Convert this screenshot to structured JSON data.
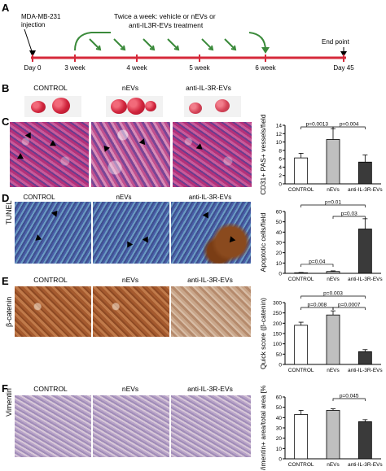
{
  "panel_a": {
    "letter": "A",
    "injection_label_1": "MDA-MB-231",
    "injection_label_2": "injection",
    "treatment_label_1": "Twice a week: vehicle or nEVs or",
    "treatment_label_2": "anti-IL3R-EVs treatment",
    "end_point_label": "End point",
    "timepoints": [
      "Day 0",
      "3 week",
      "4 week",
      "5 week",
      "6 week",
      "Day 45"
    ]
  },
  "panel_b": {
    "letter": "B",
    "groups": [
      "CONTROL",
      "nEVs",
      "anti-IL-3R-EVs"
    ]
  },
  "panel_c": {
    "letter": "C"
  },
  "panel_d": {
    "letter": "D",
    "row_label": "TUNEL",
    "groups": [
      "CONTROL",
      "nEVs",
      "anti-IL-3R-EVs"
    ]
  },
  "panel_e": {
    "letter": "E",
    "row_label": "β-catenin",
    "groups": [
      "CONTROL",
      "nEVs",
      "anti-IL-3R-EVs"
    ]
  },
  "panel_f": {
    "letter": "F",
    "row_label": "Vimentin",
    "groups": [
      "CONTROL",
      "nEVs",
      "anti-IL-3R-EVs"
    ]
  },
  "colors": {
    "control": "#ffffff",
    "nevs": "#bfbfbf",
    "anti": "#3a3a3a",
    "timeline": "#d6293a",
    "arrow_green": "#3a8a3a"
  },
  "chart_data": [
    {
      "type": "bar",
      "categories": [
        "CONTROL",
        "nEVs",
        "anti-IL-3R-EVs"
      ],
      "values": [
        6.2,
        10.6,
        5.2
      ],
      "errors": [
        1.1,
        2.6,
        1.7
      ],
      "ylabel": "CD31+ PAS+ vessels/field",
      "ylim": [
        0,
        14
      ],
      "yticks": [
        0,
        2,
        4,
        6,
        8,
        10,
        12,
        14
      ],
      "annotations": [
        {
          "pair": [
            "CONTROL",
            "nEVs"
          ],
          "text": "p=0.0013"
        },
        {
          "pair": [
            "nEVs",
            "anti-IL-3R-EVs"
          ],
          "text": "p=0.004"
        }
      ]
    },
    {
      "type": "bar",
      "categories": [
        "CONTROL",
        "nEVs",
        "anti-IL-3R-EVs"
      ],
      "values": [
        0.5,
        1.8,
        43
      ],
      "errors": [
        0.3,
        0.6,
        10
      ],
      "ylabel": "Apoptotic cells/field",
      "ylim": [
        0,
        60
      ],
      "yticks": [
        0,
        10,
        20,
        30,
        40,
        50,
        60
      ],
      "annotations": [
        {
          "pair": [
            "CONTROL",
            "nEVs"
          ],
          "text": "p=0.04"
        },
        {
          "pair": [
            "nEVs",
            "anti-IL-3R-EVs"
          ],
          "text": "p=0.03"
        },
        {
          "pair": [
            "CONTROL",
            "anti-IL-3R-EVs"
          ],
          "text": "p=0.01"
        }
      ]
    },
    {
      "type": "bar",
      "categories": [
        "CONTROL",
        "nEVs",
        "anti-IL-3R-EVs"
      ],
      "values": [
        190,
        240,
        62
      ],
      "errors": [
        15,
        20,
        10
      ],
      "ylabel": "Quick score (β-catenin)",
      "ylim": [
        0,
        300
      ],
      "yticks": [
        0,
        50,
        100,
        150,
        200,
        250,
        300
      ],
      "annotations": [
        {
          "pair": [
            "CONTROL",
            "nEVs"
          ],
          "text": "p=0.008"
        },
        {
          "pair": [
            "nEVs",
            "anti-IL-3R-EVs"
          ],
          "text": "p=0.0007"
        },
        {
          "pair": [
            "CONTROL",
            "anti-IL-3R-EVs"
          ],
          "text": "p=0.003"
        }
      ]
    },
    {
      "type": "bar",
      "categories": [
        "CONTROL",
        "nEVs",
        "anti-IL-3R-EVs"
      ],
      "values": [
        43,
        47,
        36
      ],
      "errors": [
        4,
        1.5,
        2
      ],
      "ylabel": "Vimentin+ area/total area [%]",
      "ylim": [
        0,
        60
      ],
      "yticks": [
        0,
        10,
        20,
        30,
        40,
        50,
        60
      ],
      "annotations": [
        {
          "pair": [
            "nEVs",
            "anti-IL-3R-EVs"
          ],
          "text": "p=0.045"
        }
      ]
    }
  ]
}
